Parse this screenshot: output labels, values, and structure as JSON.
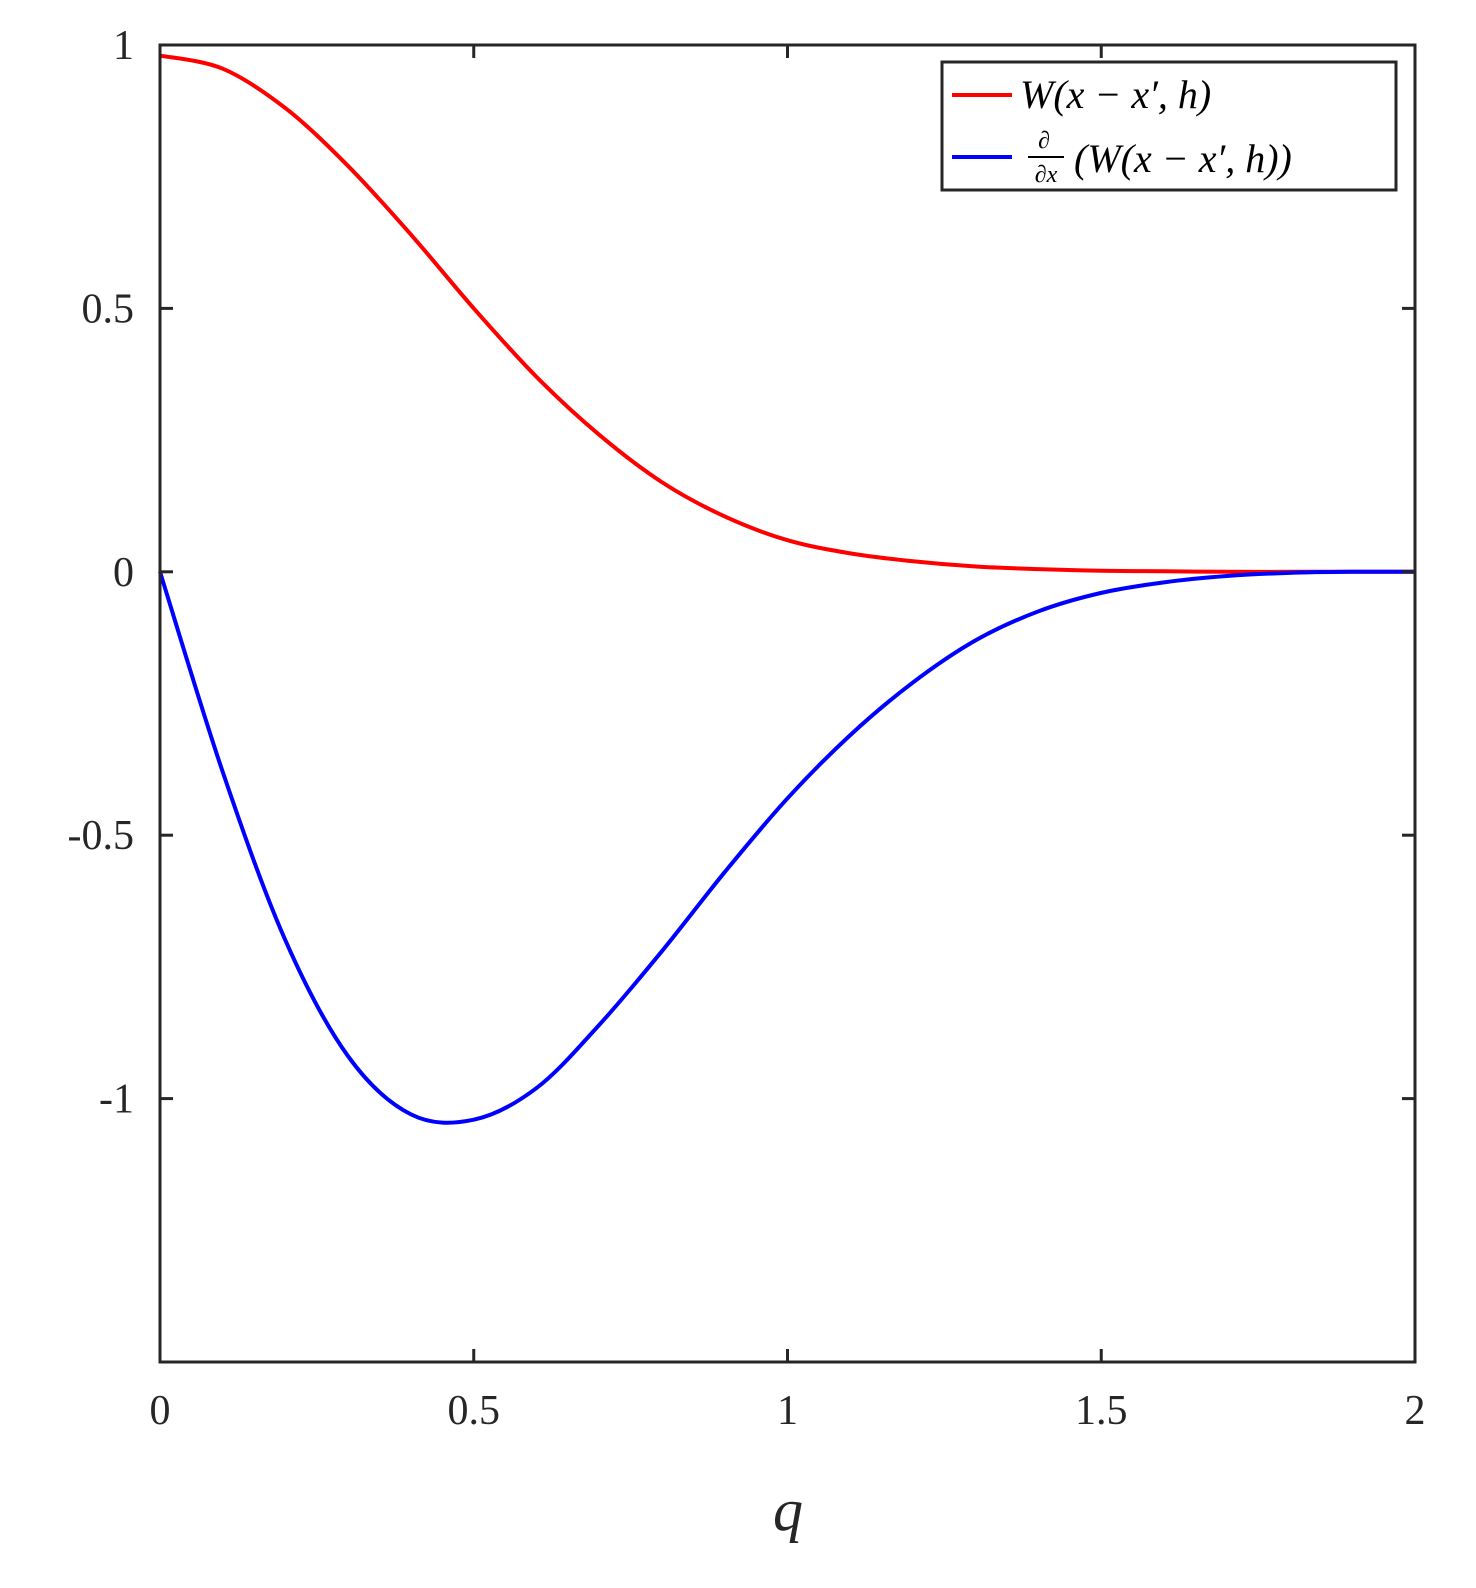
{
  "chart_data": {
    "type": "line",
    "title": "",
    "xlabel": "q",
    "ylabel": "",
    "xlim": [
      0,
      2
    ],
    "ylim": [
      -1.5,
      1
    ],
    "x_ticks": [
      "0",
      "0.5",
      "1",
      "1.5",
      "2"
    ],
    "y_ticks": [
      "1",
      "0.5",
      "0",
      "-0.5",
      "-1"
    ],
    "x_tick_values": [
      0,
      0.5,
      1,
      1.5,
      2
    ],
    "y_tick_values": [
      1,
      0.5,
      0,
      -0.5,
      -1
    ],
    "grid": false,
    "legend_position": "top-right",
    "x": [
      0,
      0.1,
      0.2,
      0.3,
      0.4,
      0.5,
      0.6,
      0.7,
      0.8,
      0.9,
      1.0,
      1.1,
      1.2,
      1.3,
      1.4,
      1.5,
      1.6,
      1.7,
      1.8,
      1.9,
      2.0
    ],
    "series": [
      {
        "name": "W(x − x′, h)",
        "color": "#ff0000",
        "values": [
          0.98,
          0.955,
          0.88,
          0.77,
          0.64,
          0.5,
          0.37,
          0.26,
          0.17,
          0.105,
          0.06,
          0.035,
          0.02,
          0.01,
          0.005,
          0.002,
          0.001,
          0.0,
          0.0,
          0.0,
          0.0
        ]
      },
      {
        "name_prefix": "∂/∂x",
        "name": "(W(x − x′, h))",
        "color": "#0000ff",
        "values": [
          0.0,
          -0.38,
          -0.7,
          -0.92,
          -1.03,
          -1.04,
          -0.98,
          -0.86,
          -0.72,
          -0.57,
          -0.43,
          -0.31,
          -0.21,
          -0.13,
          -0.075,
          -0.04,
          -0.02,
          -0.008,
          -0.002,
          0.0,
          0.0
        ]
      }
    ]
  }
}
